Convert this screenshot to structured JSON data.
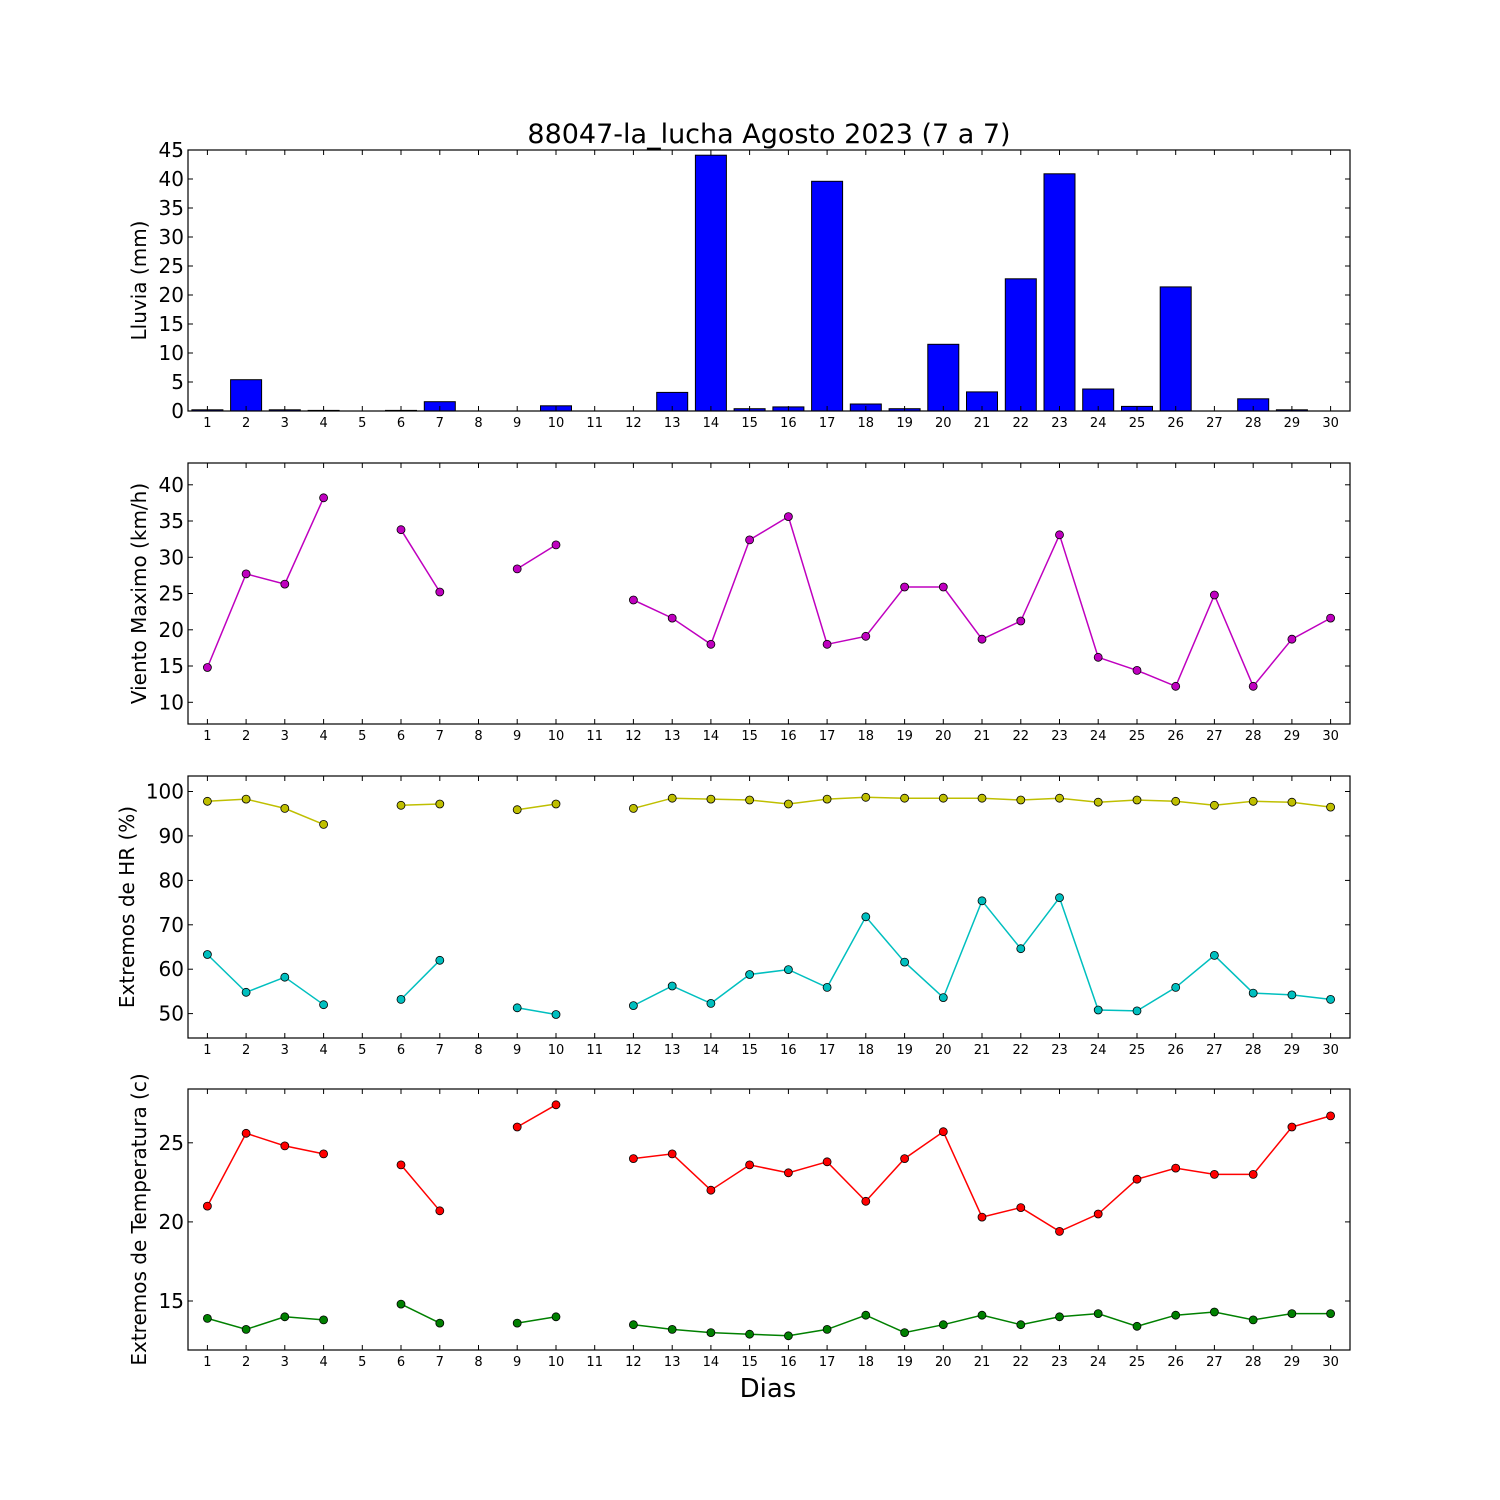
{
  "title": "88047-la_lucha Agosto 2023  (7 a 7)",
  "xlabel": "Dias",
  "chart_data": [
    {
      "type": "bar",
      "ylabel": "Lluvia (mm)",
      "categories": [
        1,
        2,
        3,
        4,
        5,
        6,
        7,
        8,
        9,
        10,
        11,
        12,
        13,
        14,
        15,
        16,
        17,
        18,
        19,
        20,
        21,
        22,
        23,
        24,
        25,
        26,
        27,
        28,
        29,
        30
      ],
      "values": [
        0.2,
        5.4,
        0.2,
        0.1,
        0,
        0.1,
        1.6,
        0,
        0,
        0.9,
        0,
        0,
        3.2,
        44.1,
        0.4,
        0.7,
        39.6,
        1.2,
        0.4,
        11.5,
        3.3,
        22.8,
        40.9,
        3.8,
        0.8,
        21.4,
        0,
        2.1,
        0.2,
        0
      ],
      "ylim": [
        0,
        45
      ],
      "yticks": [
        0,
        5,
        10,
        15,
        20,
        25,
        30,
        35,
        40,
        45
      ],
      "colors": {
        "bar": "#0000ff"
      }
    },
    {
      "type": "line",
      "ylabel": "Viento Maximo (km/h)",
      "x": [
        1,
        2,
        3,
        4,
        5,
        6,
        7,
        8,
        9,
        10,
        11,
        12,
        13,
        14,
        15,
        16,
        17,
        18,
        19,
        20,
        21,
        22,
        23,
        24,
        25,
        26,
        27,
        28,
        29,
        30
      ],
      "series": [
        {
          "color": "#bf00bf",
          "values": [
            14.8,
            27.7,
            26.3,
            38.2,
            null,
            33.8,
            25.2,
            null,
            28.4,
            31.7,
            null,
            24.1,
            21.6,
            18.0,
            32.4,
            35.6,
            18.0,
            19.1,
            25.9,
            25.9,
            18.7,
            21.2,
            33.1,
            16.2,
            14.4,
            12.2,
            24.8,
            12.2,
            18.7,
            21.6
          ]
        }
      ],
      "ylim": [
        7,
        43
      ],
      "yticks": [
        10,
        15,
        20,
        25,
        30,
        35,
        40
      ]
    },
    {
      "type": "line",
      "ylabel": "Extremos de HR (%)",
      "x": [
        1,
        2,
        3,
        4,
        5,
        6,
        7,
        8,
        9,
        10,
        11,
        12,
        13,
        14,
        15,
        16,
        17,
        18,
        19,
        20,
        21,
        22,
        23,
        24,
        25,
        26,
        27,
        28,
        29,
        30
      ],
      "series": [
        {
          "color": "#bfbf00",
          "values": [
            97.8,
            98.3,
            96.2,
            92.6,
            null,
            96.9,
            97.2,
            null,
            95.9,
            97.2,
            null,
            96.2,
            98.5,
            98.3,
            98.1,
            97.2,
            98.3,
            98.7,
            98.5,
            98.5,
            98.5,
            98.1,
            98.5,
            97.6,
            98.1,
            97.8,
            96.9,
            97.8,
            97.6,
            96.5
          ]
        },
        {
          "color": "#00bfbf",
          "values": [
            63.3,
            54.8,
            58.2,
            52.0,
            null,
            53.2,
            62.0,
            null,
            51.3,
            49.8,
            null,
            51.8,
            56.2,
            52.3,
            58.8,
            59.9,
            55.9,
            71.8,
            61.6,
            53.6,
            75.4,
            64.6,
            76.1,
            50.8,
            50.6,
            55.9,
            63.1,
            54.6,
            54.2,
            53.2
          ]
        }
      ],
      "ylim": [
        44.5,
        103.5
      ],
      "yticks": [
        50,
        60,
        70,
        80,
        90,
        100
      ]
    },
    {
      "type": "line",
      "ylabel": "Extremos de Temperatura (c)",
      "x": [
        1,
        2,
        3,
        4,
        5,
        6,
        7,
        8,
        9,
        10,
        11,
        12,
        13,
        14,
        15,
        16,
        17,
        18,
        19,
        20,
        21,
        22,
        23,
        24,
        25,
        26,
        27,
        28,
        29,
        30
      ],
      "series": [
        {
          "color": "#ff0000",
          "values": [
            21.0,
            25.6,
            24.8,
            24.3,
            null,
            23.6,
            20.7,
            null,
            26.0,
            27.4,
            null,
            24.0,
            24.3,
            22.0,
            23.6,
            23.1,
            23.8,
            21.3,
            24.0,
            25.7,
            20.3,
            20.9,
            19.4,
            20.5,
            22.7,
            23.4,
            23.0,
            23.0,
            26.0,
            26.7
          ]
        },
        {
          "color": "#008000",
          "values": [
            13.9,
            13.2,
            14.0,
            13.8,
            null,
            14.8,
            13.6,
            null,
            13.6,
            14.0,
            null,
            13.5,
            13.2,
            13.0,
            12.9,
            12.8,
            13.2,
            14.1,
            13.0,
            13.5,
            14.1,
            13.5,
            14.0,
            14.2,
            13.4,
            14.1,
            14.3,
            13.8,
            14.2,
            14.2
          ]
        }
      ],
      "ylim": [
        11.9,
        28.4
      ],
      "yticks": [
        15,
        20,
        25
      ]
    }
  ]
}
